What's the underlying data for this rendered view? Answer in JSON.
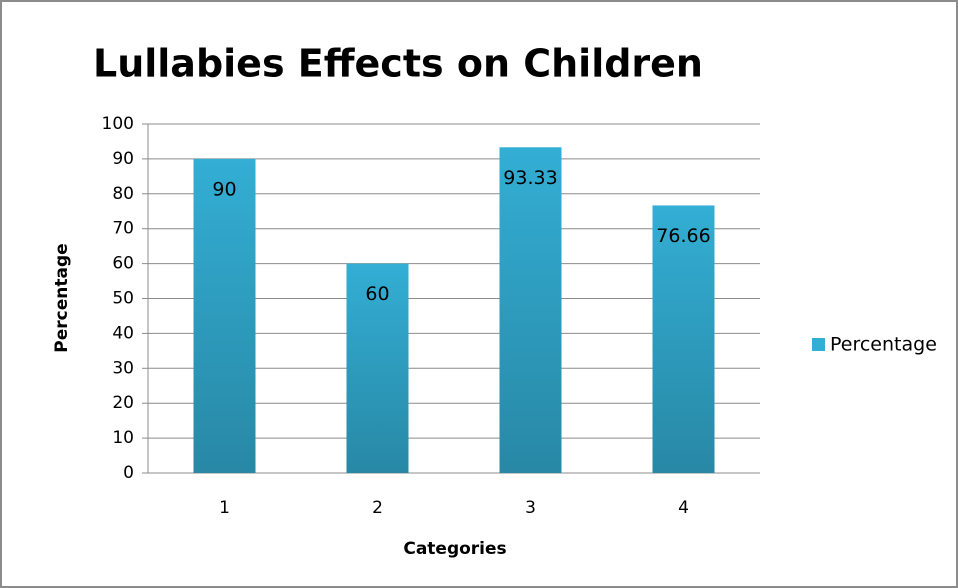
{
  "chart_data": {
    "type": "bar",
    "title": "Lullabies Effects on Children",
    "x_label": "Categories",
    "y_label": "Percentage",
    "categories": [
      "1",
      "2",
      "3",
      "4"
    ],
    "series": [
      {
        "name": "Percentage",
        "color": "#33aed4",
        "values": [
          90,
          60,
          93.33,
          76.66
        ]
      }
    ],
    "ylim": [
      0,
      100
    ],
    "yticks": [
      0,
      10,
      20,
      30,
      40,
      50,
      60,
      70,
      80,
      90,
      100
    ],
    "grid": true,
    "legend": "right",
    "data_labels": true
  }
}
